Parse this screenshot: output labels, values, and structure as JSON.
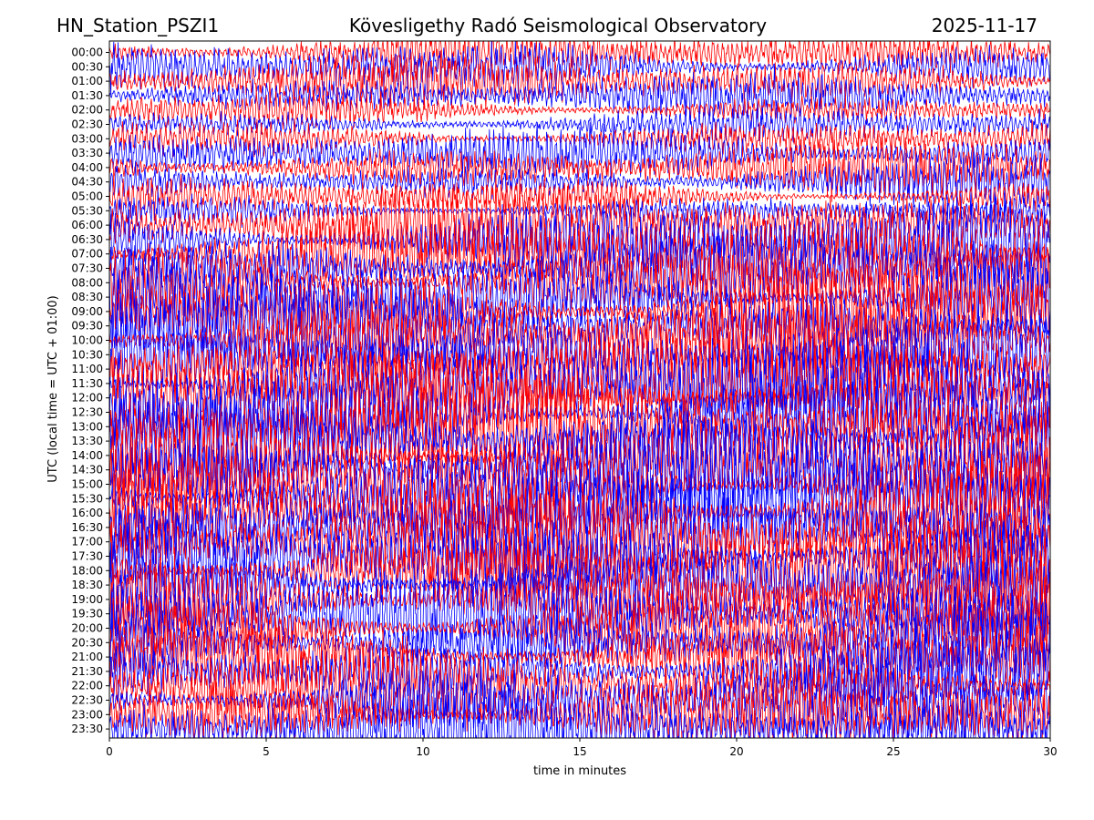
{
  "header": {
    "station": "HN_Station_PSZI1",
    "observatory": "Kövesligethy Radó Seismological Observatory",
    "date": "2025-11-17"
  },
  "chart_data": {
    "type": "line",
    "title": "Kövesligethy Radó Seismological Observatory",
    "xlabel": "time in minutes",
    "ylabel": "UTC (local time = UTC + 01:00)",
    "xlim": [
      0,
      30
    ],
    "x_ticks": [
      0,
      5,
      10,
      15,
      20,
      25,
      30
    ],
    "y_ticks": [
      "00:00",
      "00:30",
      "01:00",
      "01:30",
      "02:00",
      "02:30",
      "03:00",
      "03:30",
      "04:00",
      "04:30",
      "05:00",
      "05:30",
      "06:00",
      "06:30",
      "07:00",
      "07:30",
      "08:00",
      "08:30",
      "09:00",
      "09:30",
      "10:00",
      "10:30",
      "11:00",
      "11:30",
      "12:00",
      "12:30",
      "13:00",
      "13:30",
      "14:00",
      "14:30",
      "15:00",
      "15:30",
      "16:00",
      "16:30",
      "17:00",
      "17:30",
      "18:00",
      "18:30",
      "19:00",
      "19:30",
      "20:00",
      "20:30",
      "21:00",
      "21:30",
      "22:00",
      "22:30",
      "23:00",
      "23:30"
    ],
    "trace_colors": [
      "#ff0000",
      "#0000ff"
    ],
    "trace_count": 48,
    "grid": false
  }
}
